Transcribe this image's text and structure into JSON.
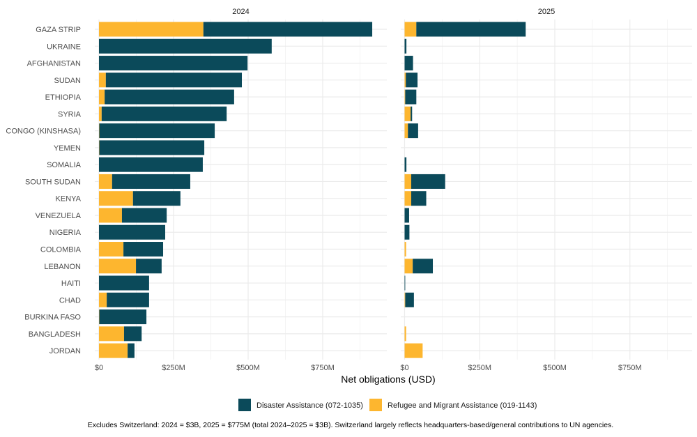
{
  "chart_data": {
    "type": "bar",
    "orientation": "horizontal",
    "stacked": true,
    "xlabel": "Net obligations (USD)",
    "x_ticks": [
      "$0",
      "$250M",
      "$500M",
      "$750M"
    ],
    "x_tick_values": [
      0,
      250,
      500,
      750
    ],
    "xlim": [
      0,
      965
    ],
    "units": "USD millions",
    "grid": true,
    "legend_position": "bottom",
    "colors": {
      "Disaster Assistance (072-1035)": "#0b4a5a",
      "Refugee and Migrant Assistance (019-1143)": "#fdb62f"
    },
    "legend": [
      "Disaster Assistance (072-1035)",
      "Refugee and Migrant Assistance (019-1143)"
    ],
    "categories": [
      "GAZA STRIP",
      "UKRAINE",
      "AFGHANISTAN",
      "SUDAN",
      "ETHIOPIA",
      "SYRIA",
      "CONGO (KINSHASA)",
      "YEMEN",
      "SOMALIA",
      "SOUTH SUDAN",
      "KENYA",
      "VENEZUELA",
      "NIGERIA",
      "COLOMBIA",
      "LEBANON",
      "HAITI",
      "CHAD",
      "BURKINA FASO",
      "BANGLADESH",
      "JORDAN"
    ],
    "panels": [
      {
        "title": "2024",
        "series": [
          {
            "name": "Refugee and Migrant Assistance (019-1143)",
            "values": [
              350,
              0,
              0,
              23,
              19,
              9,
              1,
              1,
              0,
              44,
              114,
              77,
              0,
              82,
              124,
              0,
              26,
              1,
              84,
              96
            ]
          },
          {
            "name": "Disaster Assistance (072-1035)",
            "values": [
              566,
              579,
              498,
              456,
              434,
              419,
              387,
              352,
              348,
              262,
              159,
              150,
              222,
              133,
              86,
              168,
              142,
              158,
              59,
              23
            ]
          }
        ]
      },
      {
        "title": "2025",
        "series": [
          {
            "name": "Refugee and Migrant Assistance (019-1143)",
            "values": [
              39,
              0,
              0,
              4,
              2,
              20,
              11,
              0,
              0,
              22,
              22,
              0,
              0,
              5,
              27,
              0,
              2,
              0,
              5,
              60
            ]
          },
          {
            "name": "Disaster Assistance (072-1035)",
            "values": [
              364,
              6,
              28,
              39,
              37,
              5,
              34,
              0,
              6,
              113,
              50,
              15,
              16,
              0,
              67,
              2,
              29,
              0,
              0,
              0
            ]
          }
        ]
      }
    ],
    "caption": "Excludes Switzerland: 2024 = $3B, 2025 = $775M (total 2024–2025 = $3B). Switzerland largely reflects headquarters-based/general contributions to UN agencies."
  }
}
